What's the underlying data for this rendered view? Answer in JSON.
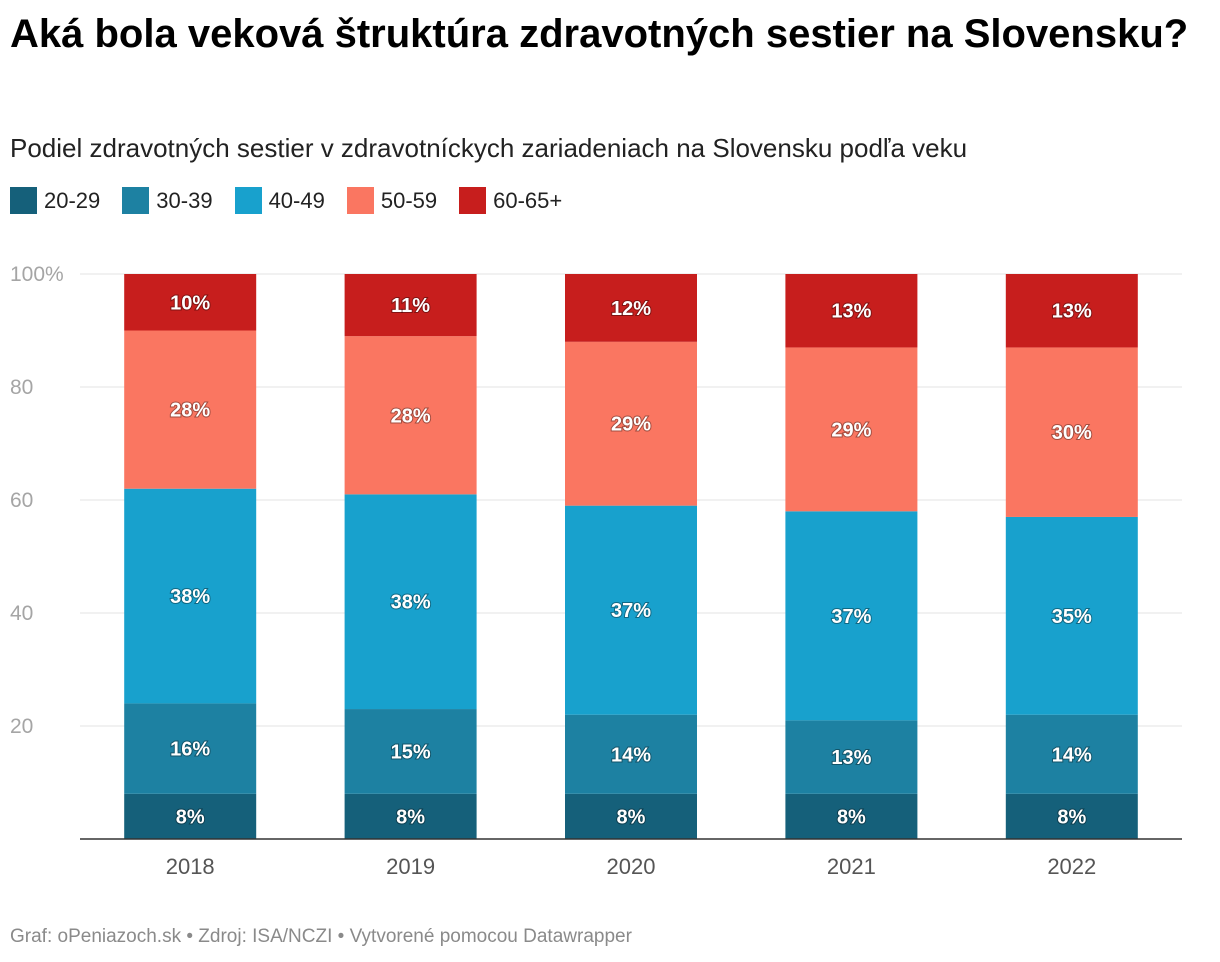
{
  "chart_data": {
    "type": "bar",
    "stacked": true,
    "title": "Aká bola veková štruktúra zdravotných sestier na Slovensku?",
    "subtitle": "Podiel zdravotných sestier v zdravotníckych zariadeniach na Slovensku podľa veku",
    "categories": [
      "2018",
      "2019",
      "2020",
      "2021",
      "2022"
    ],
    "series": [
      {
        "name": "20-29",
        "color": "#15607a",
        "values": [
          8,
          8,
          8,
          8,
          8
        ],
        "labels": [
          "8%",
          "8%",
          "8%",
          "8%",
          "8%"
        ]
      },
      {
        "name": "30-39",
        "color": "#1d81a2",
        "values": [
          16,
          15,
          14,
          13,
          14
        ],
        "labels": [
          "16%",
          "15%",
          "14%",
          "13%",
          "14%"
        ]
      },
      {
        "name": "40-49",
        "color": "#18a1cd",
        "values": [
          38,
          38,
          37,
          37,
          35
        ],
        "labels": [
          "38%",
          "38%",
          "37%",
          "37%",
          "35%"
        ]
      },
      {
        "name": "50-59",
        "color": "#fa7661",
        "values": [
          28,
          28,
          29,
          29,
          30
        ],
        "labels": [
          "28%",
          "28%",
          "29%",
          "29%",
          "30%"
        ]
      },
      {
        "name": "60-65+",
        "color": "#c71e1d",
        "values": [
          10,
          11,
          12,
          13,
          13
        ],
        "labels": [
          "10%",
          "11%",
          "12%",
          "13%",
          "13%"
        ]
      }
    ],
    "ylim": [
      0,
      100
    ],
    "yticks": [
      {
        "value": 100,
        "label": "100%"
      },
      {
        "value": 80,
        "label": "80"
      },
      {
        "value": 60,
        "label": "60"
      },
      {
        "value": 40,
        "label": "40"
      },
      {
        "value": 20,
        "label": "20"
      }
    ],
    "grid": true,
    "legend": "top-left"
  },
  "footer": "Graf: oPeniazoch.sk • Zdroj: ISA/NCZI • Vytvorené pomocou Datawrapper"
}
